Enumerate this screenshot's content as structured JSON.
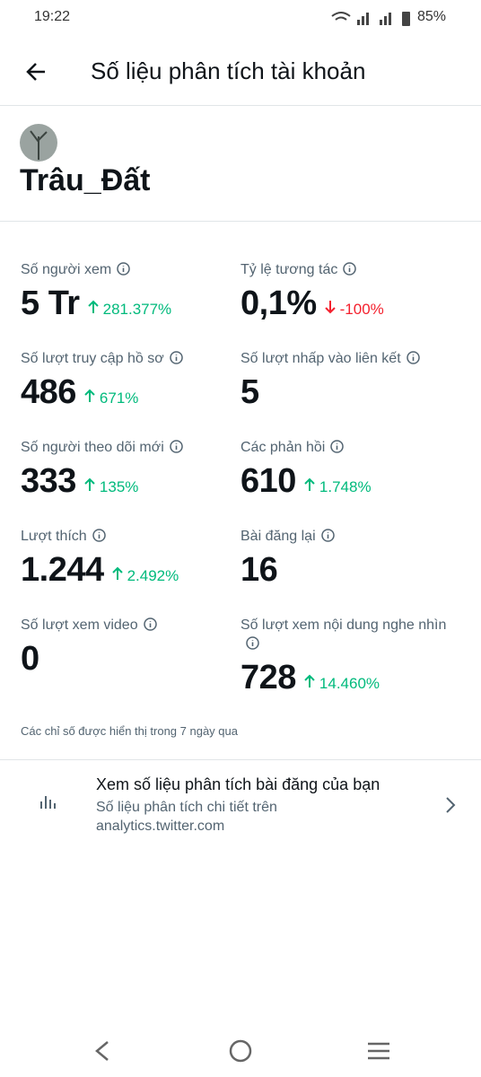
{
  "status_bar": {
    "time": "19:22",
    "battery": "85%"
  },
  "header": {
    "title": "Số liệu phân tích tài khoản"
  },
  "profile": {
    "name": "Trâu_Đất"
  },
  "metrics": [
    {
      "label": "Số người xem",
      "value": "5 Tr",
      "change": "281.377%",
      "direction": "up"
    },
    {
      "label": "Tỷ lệ tương tác",
      "value": "0,1%",
      "change": "-100%",
      "direction": "down"
    },
    {
      "label": "Số lượt truy cập hồ sơ",
      "value": "486",
      "change": "671%",
      "direction": "up"
    },
    {
      "label": "Số lượt nhấp vào liên kết",
      "value": "5"
    },
    {
      "label": "Số người theo dõi mới",
      "value": "333",
      "change": "135%",
      "direction": "up"
    },
    {
      "label": "Các phản hồi",
      "value": "610",
      "change": "1.748%",
      "direction": "up"
    },
    {
      "label": "Lượt thích",
      "value": "1.244",
      "change": "2.492%",
      "direction": "up"
    },
    {
      "label": "Bài đăng lại",
      "value": "16"
    },
    {
      "label": "Số lượt xem video",
      "value": "0"
    },
    {
      "label": "Số lượt xem nội dung nghe nhìn",
      "value": "728",
      "change": "14.460%",
      "direction": "up"
    }
  ],
  "footnote": "Các chỉ số được hiển thị trong 7 ngày qua",
  "link": {
    "title": "Xem số liệu phân tích bài đăng của bạn",
    "subtitle": "Số liệu phân tích chi tiết trên analytics.twitter.com"
  }
}
